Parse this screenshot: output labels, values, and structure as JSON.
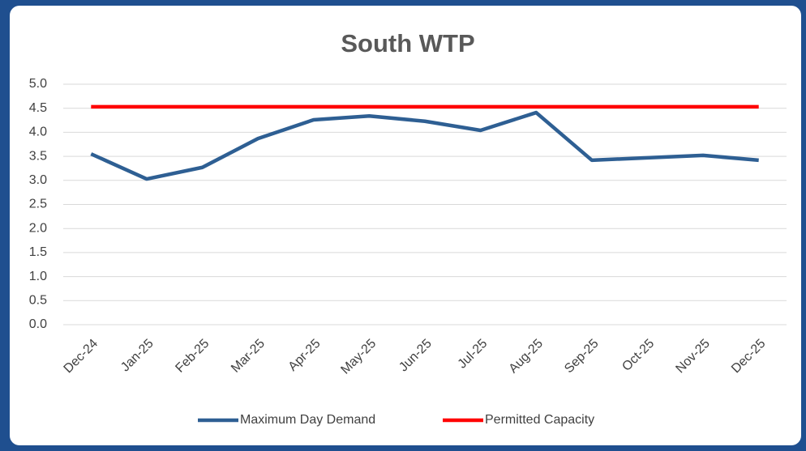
{
  "chart_data": {
    "type": "line",
    "title": "South WTP",
    "categories": [
      "Dec-24",
      "Jan-25",
      "Feb-25",
      "Mar-25",
      "Apr-25",
      "May-25",
      "Jun-25",
      "Jul-25",
      "Aug-25",
      "Sep-25",
      "Oct-25",
      "Nov-25",
      "Dec-25"
    ],
    "series": [
      {
        "name": "Maximum Day Demand",
        "color": "#2e5f93",
        "values": [
          3.55,
          3.03,
          3.27,
          3.87,
          4.26,
          4.34,
          4.23,
          4.04,
          4.41,
          3.42,
          3.47,
          3.52,
          3.42
        ]
      },
      {
        "name": "Permitted Capacity",
        "color": "#ff0000",
        "values": [
          4.53,
          4.53,
          4.53,
          4.53,
          4.53,
          4.53,
          4.53,
          4.53,
          4.53,
          4.53,
          4.53,
          4.53,
          4.53
        ]
      }
    ],
    "ylim": [
      0,
      5
    ],
    "yticks": [
      {
        "value": 0,
        "label": "0.0"
      },
      0.5,
      {
        "value": 1,
        "label": "1.0"
      },
      1.5,
      {
        "value": 2,
        "label": "2.0"
      },
      2.5,
      {
        "value": 3,
        "label": "3.0"
      },
      3.5,
      {
        "value": 4,
        "label": "4.0"
      },
      4.5,
      {
        "value": 5,
        "label": "5.0"
      }
    ],
    "grid": true,
    "legend": "bottom"
  }
}
